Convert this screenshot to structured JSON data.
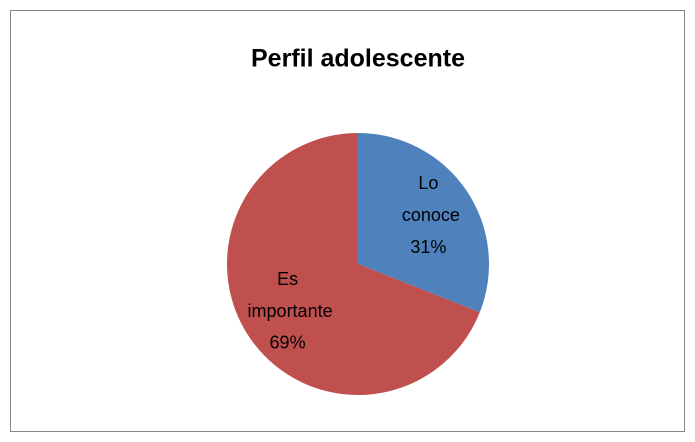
{
  "chart_data": {
    "type": "pie",
    "title": "Perfil adolescente",
    "categories": [
      "Lo conoce",
      "Es importante"
    ],
    "values": [
      31,
      69
    ],
    "value_labels": [
      "31%",
      "69%"
    ],
    "colors": [
      "#4f81bd",
      "#c0504d"
    ]
  }
}
